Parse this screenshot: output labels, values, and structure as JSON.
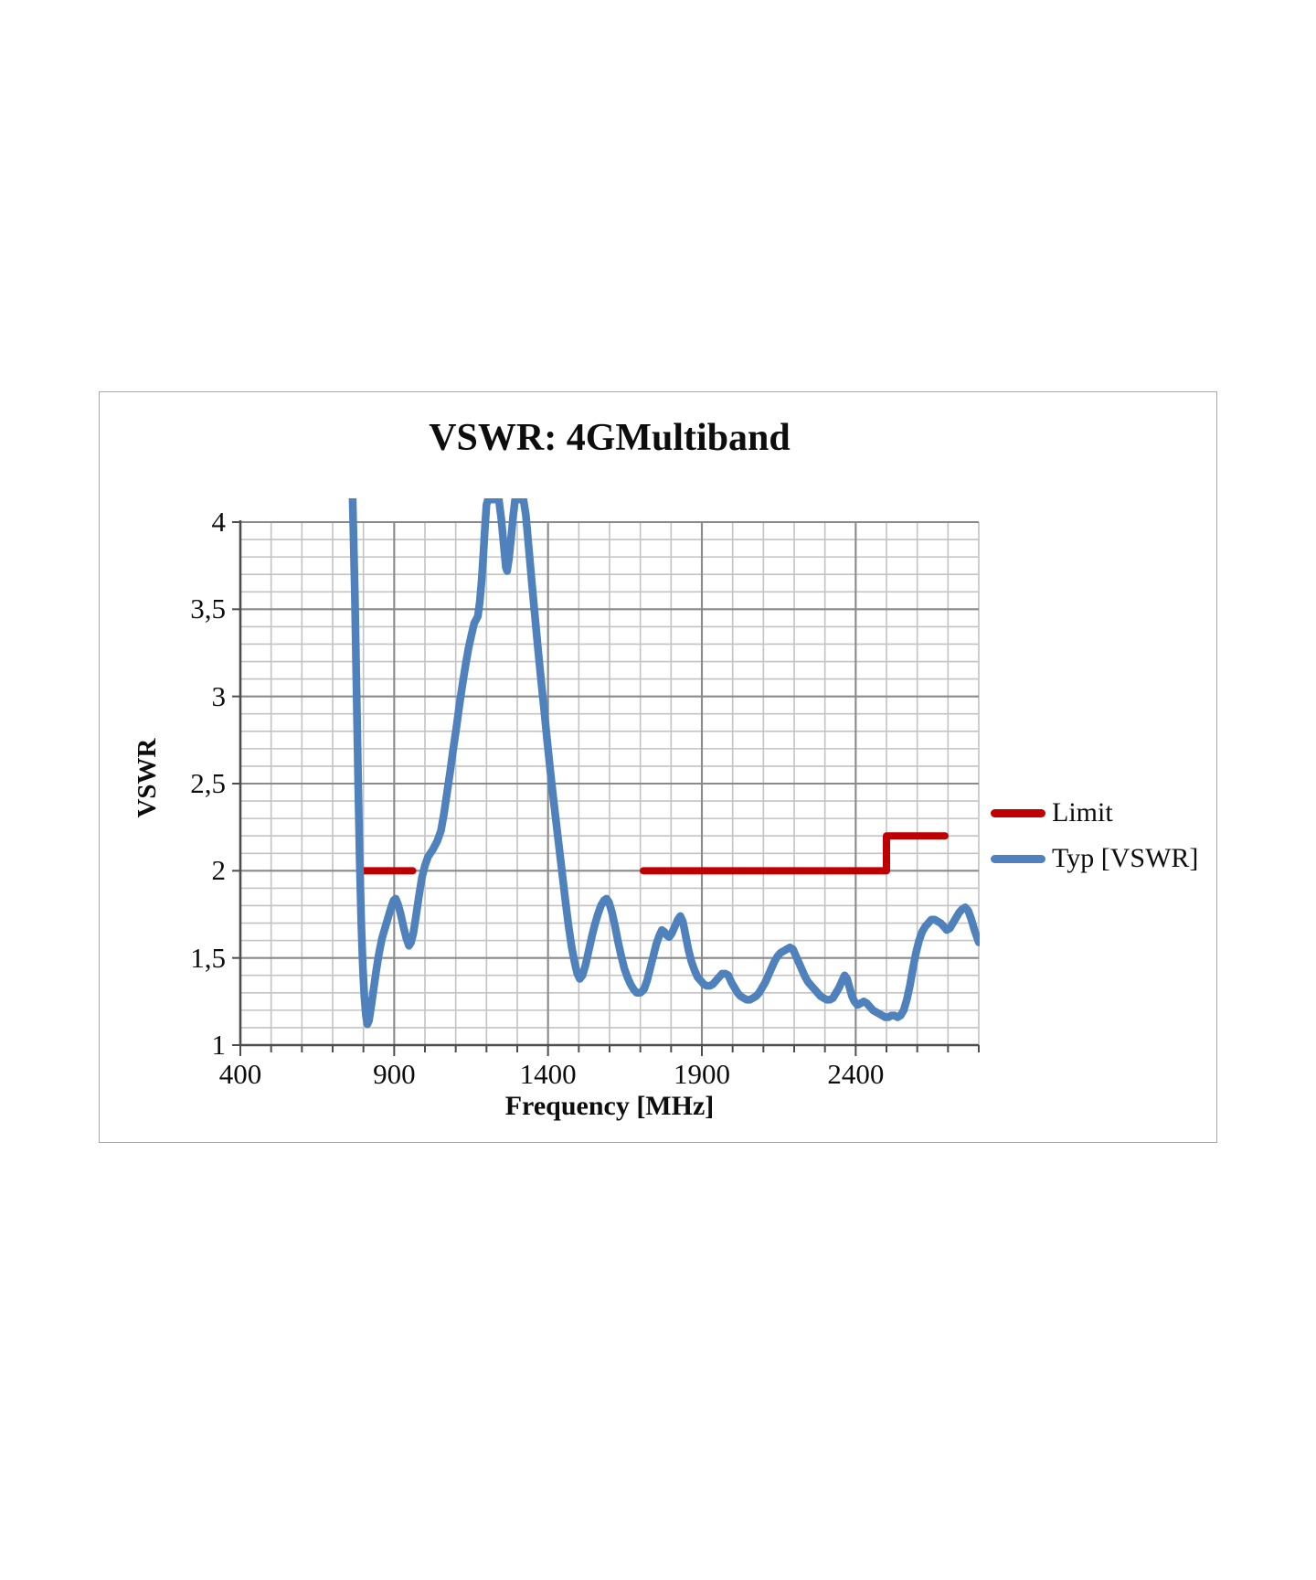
{
  "chart": {
    "frame_border_color": "#a9a9a9",
    "background": "#ffffff"
  },
  "chart_data": {
    "type": "line",
    "title": "VSWR: 4GMultiband",
    "xlabel": "Frequency [MHz]",
    "ylabel": "VSWR",
    "xlim": [
      400,
      2800
    ],
    "ylim": [
      1,
      4
    ],
    "grid": {
      "x_minor_step": 100,
      "x_major_step": 500,
      "y_minor_step": 0.1,
      "y_major_step": 0.5,
      "minor_color": "#c3c3c3",
      "major_color": "#8a8a8a",
      "axis_color": "#4d4d4d"
    },
    "x_ticks": [
      {
        "v": 400,
        "label": "400"
      },
      {
        "v": 900,
        "label": "900"
      },
      {
        "v": 1400,
        "label": "1400"
      },
      {
        "v": 1900,
        "label": "1900"
      },
      {
        "v": 2400,
        "label": "2400"
      }
    ],
    "y_ticks": [
      {
        "v": 1,
        "label": "1"
      },
      {
        "v": 1.5,
        "label": "1,5"
      },
      {
        "v": 2,
        "label": "2"
      },
      {
        "v": 2.5,
        "label": "2,5"
      },
      {
        "v": 3,
        "label": "3"
      },
      {
        "v": 3.5,
        "label": "3,5"
      },
      {
        "v": 4,
        "label": "4"
      }
    ],
    "legend_position": "right-outside",
    "series": [
      {
        "name": "Limit",
        "color": "#c00000",
        "style": "step-segments",
        "segments": [
          [
            [
              790,
              2
            ],
            [
              960,
              2
            ]
          ],
          [
            [
              1710,
              2
            ],
            [
              2500,
              2
            ],
            [
              2500,
              2.2
            ],
            [
              2690,
              2.2
            ]
          ]
        ]
      },
      {
        "name": "Typ [VSWR]",
        "color": "#4f81bd",
        "style": "line",
        "offscale_cap": 4.13,
        "points": [
          [
            765,
            4.13
          ],
          [
            772,
            3.6
          ],
          [
            778,
            3.0
          ],
          [
            783,
            2.5
          ],
          [
            788,
            2.05
          ],
          [
            793,
            1.7
          ],
          [
            798,
            1.45
          ],
          [
            803,
            1.28
          ],
          [
            808,
            1.17
          ],
          [
            813,
            1.12
          ],
          [
            818,
            1.14
          ],
          [
            825,
            1.22
          ],
          [
            833,
            1.32
          ],
          [
            841,
            1.42
          ],
          [
            850,
            1.52
          ],
          [
            860,
            1.61
          ],
          [
            870,
            1.67
          ],
          [
            880,
            1.73
          ],
          [
            890,
            1.79
          ],
          [
            898,
            1.83
          ],
          [
            905,
            1.84
          ],
          [
            912,
            1.81
          ],
          [
            920,
            1.76
          ],
          [
            930,
            1.68
          ],
          [
            940,
            1.61
          ],
          [
            948,
            1.57
          ],
          [
            955,
            1.59
          ],
          [
            962,
            1.64
          ],
          [
            970,
            1.73
          ],
          [
            980,
            1.85
          ],
          [
            990,
            1.96
          ],
          [
            1000,
            2.03
          ],
          [
            1010,
            2.08
          ],
          [
            1025,
            2.12
          ],
          [
            1040,
            2.17
          ],
          [
            1052,
            2.23
          ],
          [
            1062,
            2.33
          ],
          [
            1072,
            2.45
          ],
          [
            1082,
            2.57
          ],
          [
            1092,
            2.7
          ],
          [
            1102,
            2.82
          ],
          [
            1112,
            2.95
          ],
          [
            1122,
            3.07
          ],
          [
            1132,
            3.18
          ],
          [
            1142,
            3.28
          ],
          [
            1152,
            3.36
          ],
          [
            1160,
            3.42
          ],
          [
            1166,
            3.44
          ],
          [
            1172,
            3.46
          ],
          [
            1178,
            3.54
          ],
          [
            1184,
            3.66
          ],
          [
            1190,
            3.82
          ],
          [
            1195,
            3.97
          ],
          [
            1200,
            4.1
          ],
          [
            1205,
            4.13
          ],
          [
            1240,
            4.13
          ],
          [
            1248,
            4.02
          ],
          [
            1256,
            3.87
          ],
          [
            1263,
            3.74
          ],
          [
            1267,
            3.72
          ],
          [
            1273,
            3.79
          ],
          [
            1280,
            3.91
          ],
          [
            1287,
            4.04
          ],
          [
            1293,
            4.13
          ],
          [
            1320,
            4.13
          ],
          [
            1328,
            4.04
          ],
          [
            1337,
            3.86
          ],
          [
            1347,
            3.66
          ],
          [
            1357,
            3.47
          ],
          [
            1367,
            3.28
          ],
          [
            1377,
            3.1
          ],
          [
            1387,
            2.93
          ],
          [
            1397,
            2.75
          ],
          [
            1407,
            2.58
          ],
          [
            1417,
            2.42
          ],
          [
            1427,
            2.27
          ],
          [
            1437,
            2.12
          ],
          [
            1447,
            1.97
          ],
          [
            1457,
            1.82
          ],
          [
            1467,
            1.68
          ],
          [
            1477,
            1.56
          ],
          [
            1487,
            1.47
          ],
          [
            1495,
            1.41
          ],
          [
            1503,
            1.38
          ],
          [
            1512,
            1.4
          ],
          [
            1522,
            1.46
          ],
          [
            1532,
            1.54
          ],
          [
            1542,
            1.62
          ],
          [
            1552,
            1.69
          ],
          [
            1562,
            1.75
          ],
          [
            1572,
            1.8
          ],
          [
            1582,
            1.83
          ],
          [
            1590,
            1.84
          ],
          [
            1598,
            1.82
          ],
          [
            1608,
            1.76
          ],
          [
            1618,
            1.68
          ],
          [
            1628,
            1.59
          ],
          [
            1638,
            1.51
          ],
          [
            1648,
            1.44
          ],
          [
            1658,
            1.39
          ],
          [
            1668,
            1.35
          ],
          [
            1678,
            1.32
          ],
          [
            1688,
            1.3
          ],
          [
            1700,
            1.3
          ],
          [
            1712,
            1.32
          ],
          [
            1722,
            1.37
          ],
          [
            1732,
            1.44
          ],
          [
            1742,
            1.51
          ],
          [
            1752,
            1.58
          ],
          [
            1762,
            1.63
          ],
          [
            1770,
            1.66
          ],
          [
            1778,
            1.65
          ],
          [
            1786,
            1.63
          ],
          [
            1794,
            1.62
          ],
          [
            1802,
            1.64
          ],
          [
            1812,
            1.68
          ],
          [
            1822,
            1.72
          ],
          [
            1830,
            1.74
          ],
          [
            1838,
            1.71
          ],
          [
            1846,
            1.64
          ],
          [
            1856,
            1.55
          ],
          [
            1866,
            1.48
          ],
          [
            1876,
            1.43
          ],
          [
            1886,
            1.39
          ],
          [
            1896,
            1.37
          ],
          [
            1906,
            1.35
          ],
          [
            1916,
            1.34
          ],
          [
            1926,
            1.34
          ],
          [
            1936,
            1.35
          ],
          [
            1946,
            1.37
          ],
          [
            1956,
            1.39
          ],
          [
            1966,
            1.41
          ],
          [
            1976,
            1.41
          ],
          [
            1986,
            1.4
          ],
          [
            1996,
            1.36
          ],
          [
            2006,
            1.33
          ],
          [
            2016,
            1.3
          ],
          [
            2026,
            1.28
          ],
          [
            2036,
            1.27
          ],
          [
            2046,
            1.26
          ],
          [
            2056,
            1.26
          ],
          [
            2066,
            1.27
          ],
          [
            2076,
            1.28
          ],
          [
            2086,
            1.3
          ],
          [
            2096,
            1.33
          ],
          [
            2106,
            1.36
          ],
          [
            2116,
            1.4
          ],
          [
            2126,
            1.44
          ],
          [
            2136,
            1.48
          ],
          [
            2146,
            1.51
          ],
          [
            2156,
            1.53
          ],
          [
            2166,
            1.54
          ],
          [
            2176,
            1.55
          ],
          [
            2186,
            1.56
          ],
          [
            2196,
            1.55
          ],
          [
            2206,
            1.51
          ],
          [
            2216,
            1.47
          ],
          [
            2226,
            1.43
          ],
          [
            2236,
            1.39
          ],
          [
            2246,
            1.36
          ],
          [
            2256,
            1.34
          ],
          [
            2266,
            1.32
          ],
          [
            2276,
            1.3
          ],
          [
            2286,
            1.28
          ],
          [
            2296,
            1.27
          ],
          [
            2306,
            1.26
          ],
          [
            2316,
            1.26
          ],
          [
            2326,
            1.27
          ],
          [
            2336,
            1.3
          ],
          [
            2346,
            1.33
          ],
          [
            2356,
            1.37
          ],
          [
            2364,
            1.4
          ],
          [
            2372,
            1.38
          ],
          [
            2380,
            1.33
          ],
          [
            2388,
            1.28
          ],
          [
            2396,
            1.25
          ],
          [
            2406,
            1.23
          ],
          [
            2416,
            1.24
          ],
          [
            2426,
            1.25
          ],
          [
            2436,
            1.24
          ],
          [
            2446,
            1.22
          ],
          [
            2456,
            1.2
          ],
          [
            2466,
            1.19
          ],
          [
            2476,
            1.18
          ],
          [
            2486,
            1.17
          ],
          [
            2496,
            1.16
          ],
          [
            2506,
            1.16
          ],
          [
            2516,
            1.17
          ],
          [
            2526,
            1.17
          ],
          [
            2536,
            1.16
          ],
          [
            2546,
            1.17
          ],
          [
            2556,
            1.2
          ],
          [
            2566,
            1.26
          ],
          [
            2576,
            1.34
          ],
          [
            2586,
            1.44
          ],
          [
            2596,
            1.53
          ],
          [
            2606,
            1.6
          ],
          [
            2616,
            1.65
          ],
          [
            2626,
            1.68
          ],
          [
            2636,
            1.7
          ],
          [
            2646,
            1.72
          ],
          [
            2656,
            1.72
          ],
          [
            2666,
            1.71
          ],
          [
            2676,
            1.7
          ],
          [
            2686,
            1.68
          ],
          [
            2696,
            1.66
          ],
          [
            2706,
            1.67
          ],
          [
            2716,
            1.7
          ],
          [
            2726,
            1.73
          ],
          [
            2736,
            1.76
          ],
          [
            2746,
            1.78
          ],
          [
            2756,
            1.79
          ],
          [
            2766,
            1.77
          ],
          [
            2776,
            1.72
          ],
          [
            2786,
            1.66
          ],
          [
            2796,
            1.61
          ],
          [
            2800,
            1.59
          ]
        ]
      }
    ]
  }
}
